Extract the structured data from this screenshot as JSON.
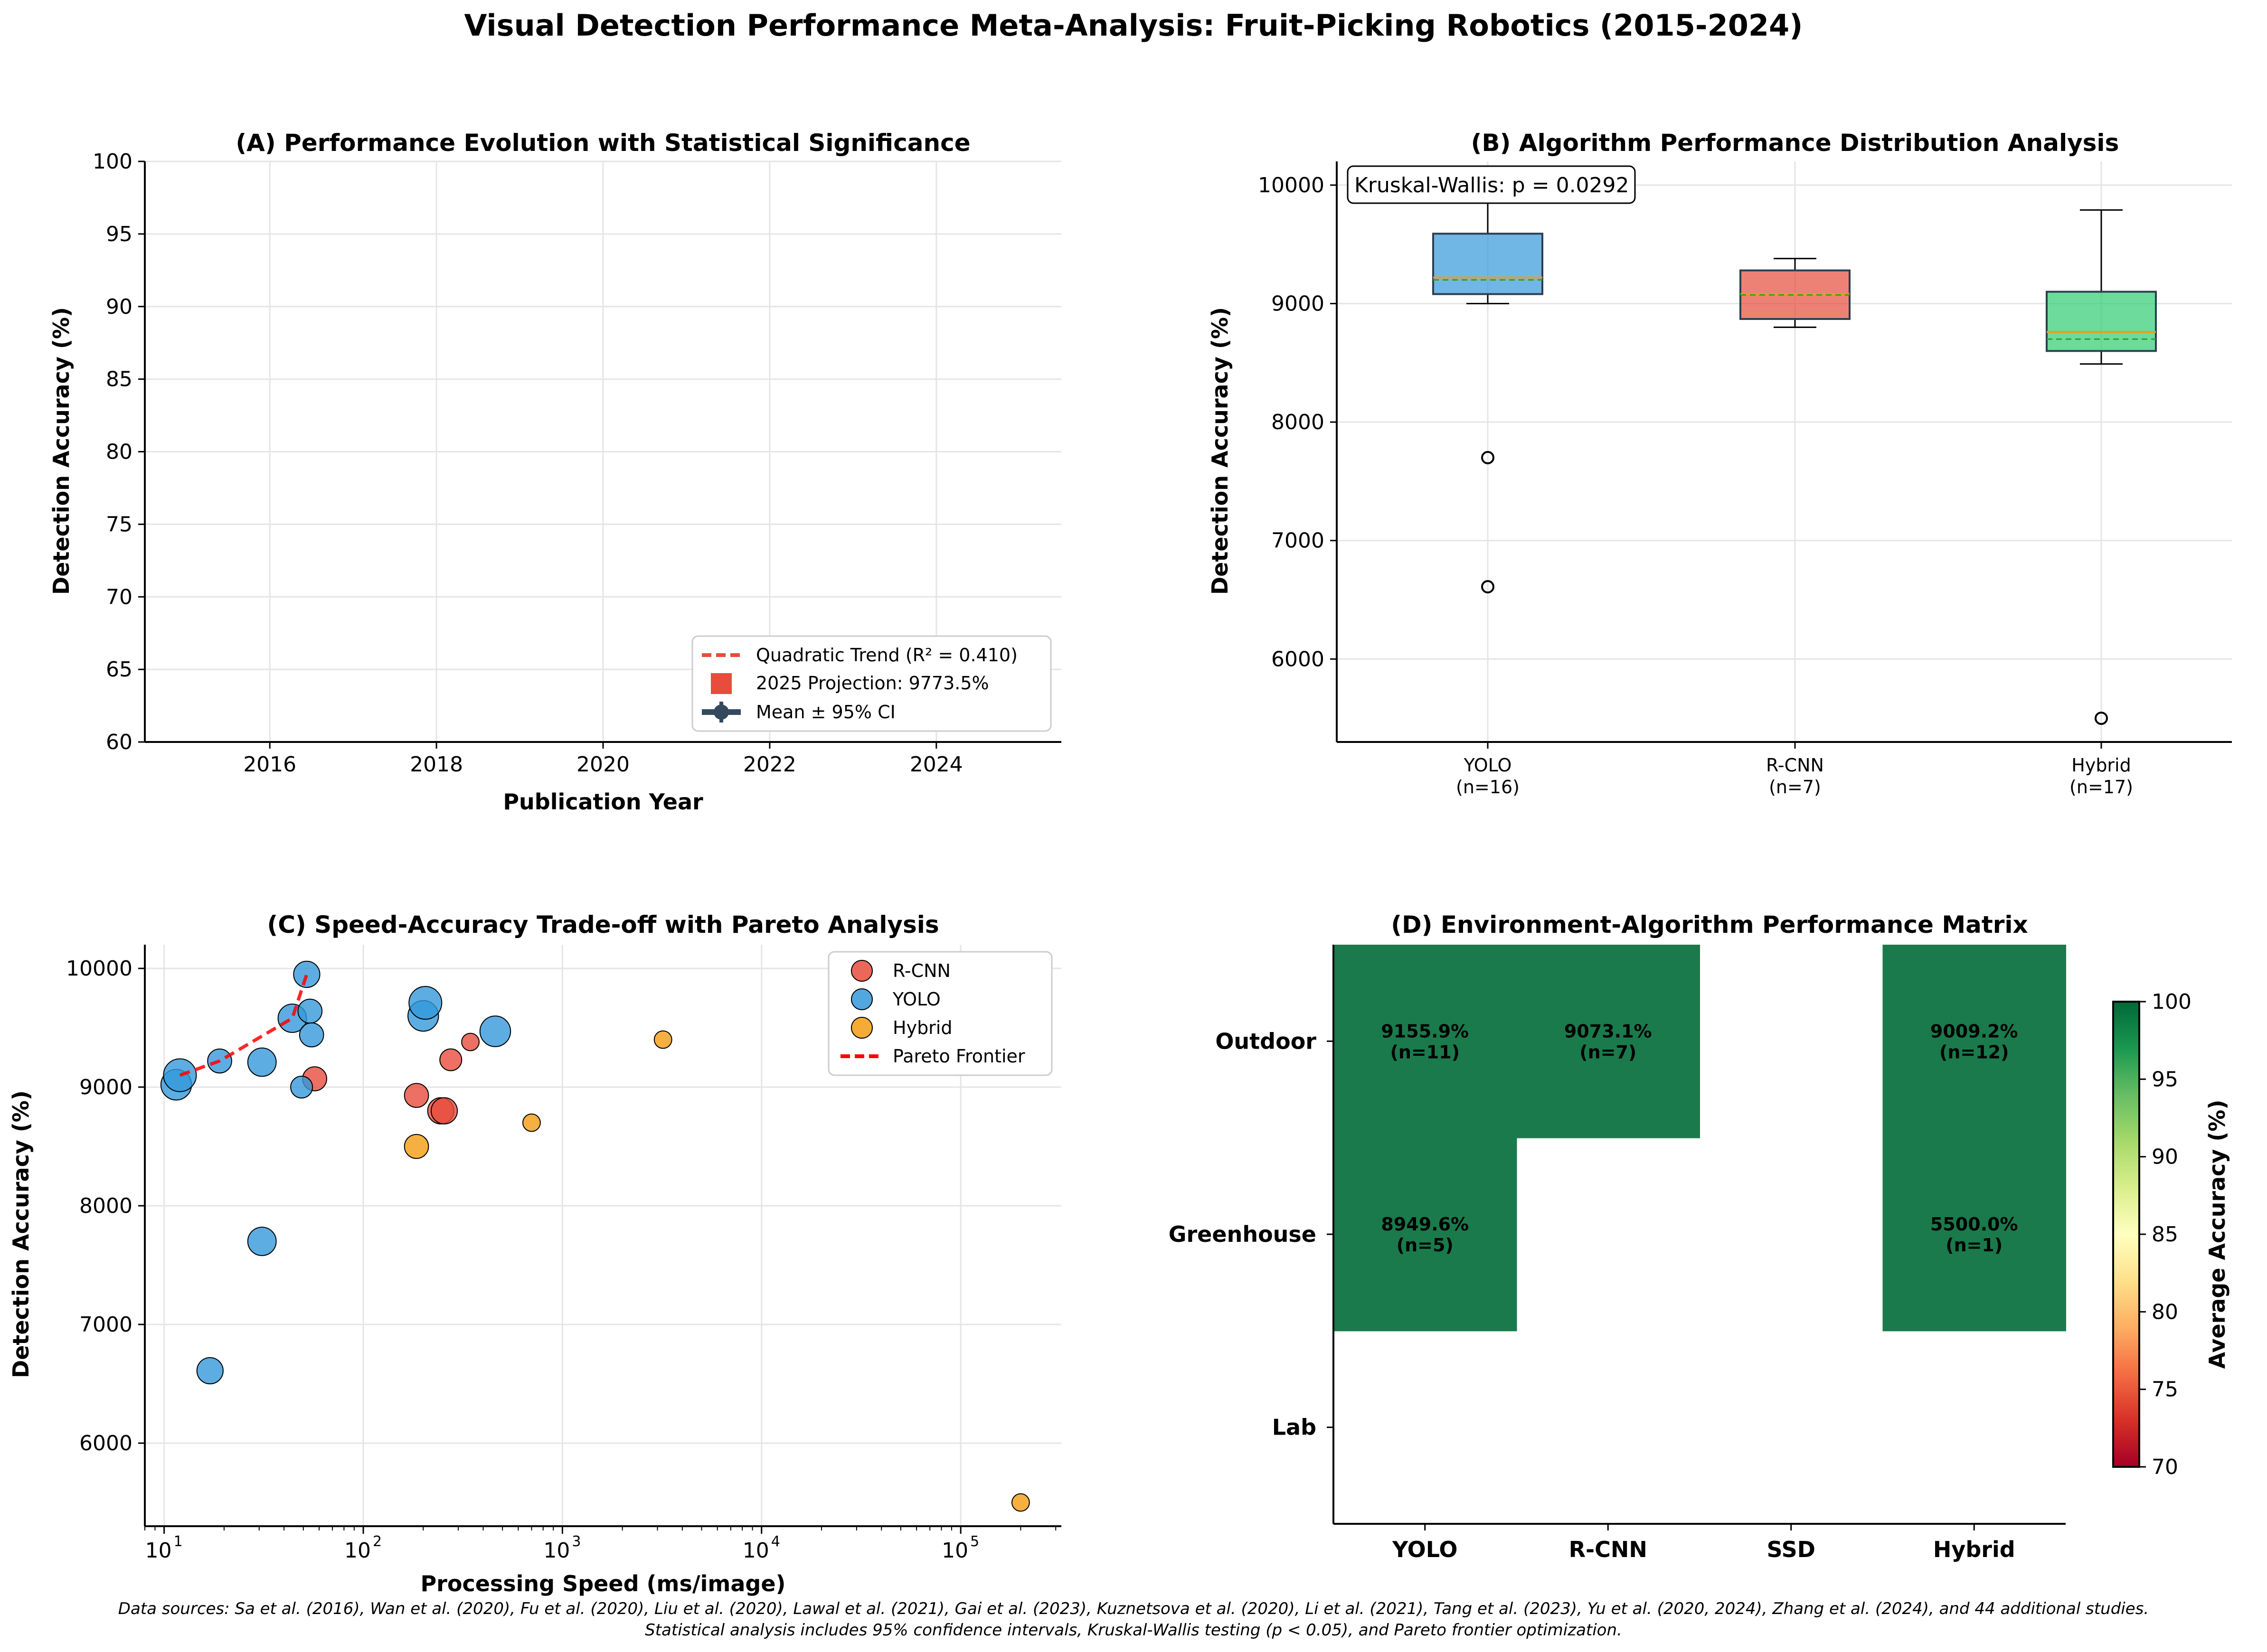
{
  "figure": {
    "title": "Visual Detection Performance Meta-Analysis: Fruit-Picking Robotics (2015-2024)",
    "footnote_line1": "Data sources: Sa et al. (2016), Wan et al. (2020), Fu et al. (2020), Liu et al. (2020), Lawal et al. (2021), Gai et al. (2023), Kuznetsova et al. (2020), Li et al. (2021), Tang et al. (2023), Yu et al. (2020, 2024), Zhang et al. (2024), and 44 additional studies.",
    "footnote_line2": "Statistical analysis includes 95% confidence intervals, Kruskal-Wallis testing (p < 0.05), and Pareto frontier optimization."
  },
  "colors": {
    "yolo": "#3498db",
    "rcnn": "#e74c3c",
    "hybrid": "#f39c12",
    "hybrid_box": "#2ecc71",
    "trend": "#e74c3c",
    "pareto": "#ff0000",
    "ci": "#34495e",
    "heat": "#1a7a4c"
  },
  "chart_data": [
    {
      "id": "A",
      "type": "line",
      "title": "(A) Performance Evolution with Statistical Significance",
      "xlabel": "Publication Year",
      "ylabel": "Detection Accuracy (%)",
      "xlim": [
        2014.5,
        2025.5
      ],
      "ylim": [
        60,
        100
      ],
      "xticks": [
        2016,
        2018,
        2020,
        2022,
        2024
      ],
      "yticks": [
        60,
        65,
        70,
        75,
        80,
        85,
        90,
        95,
        100
      ],
      "grid": true,
      "legend": [
        {
          "label": "Quadratic Trend (R² = 0.410)",
          "marker": "dashed-line",
          "color": "#e74c3c"
        },
        {
          "label": "2025 Projection: 9773.5%",
          "marker": "square",
          "color": "#e74c3c"
        },
        {
          "label": "Mean ± 95% CI",
          "marker": "errorbar",
          "color": "#34495e"
        }
      ],
      "legend_position": "lower-right",
      "series": []
    },
    {
      "id": "B",
      "type": "box",
      "title": "(B) Algorithm Performance Distribution Analysis",
      "ylabel": "Detection Accuracy (%)",
      "ylim": [
        5300,
        10200
      ],
      "yticks": [
        6000,
        7000,
        8000,
        9000,
        10000
      ],
      "annotation": "Kruskal-Wallis: p = 0.0292",
      "categories": [
        "YOLO\n(n=16)",
        "R-CNN\n(n=7)",
        "Hybrid\n(n=17)"
      ],
      "boxes": [
        {
          "name": "YOLO",
          "label_line1": "YOLO",
          "label_line2": "(n=16)",
          "q1": 9080,
          "median": 9220,
          "mean": 9200,
          "q3": 9590,
          "whisker_low": 9000,
          "whisker_high": 9950,
          "outliers": [
            7700,
            6610
          ],
          "color": "#3498db"
        },
        {
          "name": "R-CNN",
          "label_line1": "R-CNN",
          "label_line2": "(n=7)",
          "q1": 8870,
          "median": 9080,
          "mean": 9073,
          "q3": 9280,
          "whisker_low": 8800,
          "whisker_high": 9380,
          "outliers": [],
          "color": "#e74c3c"
        },
        {
          "name": "Hybrid",
          "label_line1": "Hybrid",
          "label_line2": "(n=17)",
          "q1": 8600,
          "median": 8760,
          "mean": 8700,
          "q3": 9100,
          "whisker_low": 8490,
          "whisker_high": 9790,
          "outliers": [
            5500
          ],
          "color": "#2ecc71"
        }
      ]
    },
    {
      "id": "C",
      "type": "scatter",
      "title": "(C) Speed-Accuracy Trade-off with Pareto Analysis",
      "xlabel": "Processing Speed (ms/image)",
      "ylabel": "Detection Accuracy (%)",
      "xscale": "log",
      "xlim": [
        8,
        320000
      ],
      "ylim": [
        5300,
        10200
      ],
      "xticks": [
        "10^1",
        "10^2",
        "10^3",
        "10^4",
        "10^5"
      ],
      "yticks": [
        6000,
        7000,
        8000,
        9000,
        10000
      ],
      "legend_position": "upper-right",
      "series": [
        {
          "name": "R-CNN",
          "color": "#e74c3c",
          "points": [
            {
              "x": 57,
              "y": 9070,
              "s": 11
            },
            {
              "x": 185,
              "y": 8930,
              "s": 11
            },
            {
              "x": 245,
              "y": 8800,
              "s": 12
            },
            {
              "x": 255,
              "y": 8800,
              "s": 12
            },
            {
              "x": 275,
              "y": 9230,
              "s": 10
            },
            {
              "x": 345,
              "y": 9380,
              "s": 8
            }
          ]
        },
        {
          "name": "YOLO",
          "color": "#3498db",
          "points": [
            {
              "x": 11.5,
              "y": 9020,
              "s": 14
            },
            {
              "x": 12,
              "y": 9100,
              "s": 15
            },
            {
              "x": 19,
              "y": 9220,
              "s": 11
            },
            {
              "x": 31,
              "y": 9210,
              "s": 13
            },
            {
              "x": 44,
              "y": 9580,
              "s": 13
            },
            {
              "x": 49,
              "y": 9000,
              "s": 10
            },
            {
              "x": 52,
              "y": 9950,
              "s": 12
            },
            {
              "x": 54,
              "y": 9640,
              "s": 11
            },
            {
              "x": 55,
              "y": 9440,
              "s": 11
            },
            {
              "x": 200,
              "y": 9600,
              "s": 14
            },
            {
              "x": 205,
              "y": 9710,
              "s": 15
            },
            {
              "x": 460,
              "y": 9470,
              "s": 14
            },
            {
              "x": 31,
              "y": 7700,
              "s": 13
            },
            {
              "x": 17,
              "y": 6610,
              "s": 12
            }
          ]
        },
        {
          "name": "Hybrid",
          "color": "#f39c12",
          "points": [
            {
              "x": 185,
              "y": 8500,
              "s": 11
            },
            {
              "x": 700,
              "y": 8700,
              "s": 8
            },
            {
              "x": 3200,
              "y": 9400,
              "s": 8
            },
            {
              "x": 200000,
              "y": 5500,
              "s": 8
            }
          ]
        },
        {
          "name": "Pareto Frontier",
          "color": "#ff0000",
          "line": true,
          "points": [
            {
              "x": 12,
              "y": 9100
            },
            {
              "x": 19,
              "y": 9220
            },
            {
              "x": 44,
              "y": 9580
            },
            {
              "x": 52,
              "y": 9950
            }
          ]
        }
      ]
    },
    {
      "id": "D",
      "type": "heatmap",
      "title": "(D) Environment-Algorithm Performance Matrix",
      "columns": [
        "YOLO",
        "R-CNN",
        "SSD",
        "Hybrid"
      ],
      "rows": [
        "Outdoor",
        "Greenhouse",
        "Lab"
      ],
      "colorbar_label": "Average Accuracy (%)",
      "colorbar_range": [
        70,
        100
      ],
      "colorbar_ticks": [
        70,
        75,
        80,
        85,
        90,
        95,
        100
      ],
      "cells": [
        [
          {
            "value": 9155.9,
            "label": "9155.9%",
            "n": "(n=11)"
          },
          {
            "value": 9073.1,
            "label": "9073.1%",
            "n": "(n=7)"
          },
          null,
          {
            "value": 9009.2,
            "label": "9009.2%",
            "n": "(n=12)"
          }
        ],
        [
          {
            "value": 8949.6,
            "label": "8949.6%",
            "n": "(n=5)"
          },
          null,
          null,
          {
            "value": 5500.0,
            "label": "5500.0%",
            "n": "(n=1)"
          }
        ],
        [
          null,
          null,
          null,
          null
        ]
      ]
    }
  ]
}
